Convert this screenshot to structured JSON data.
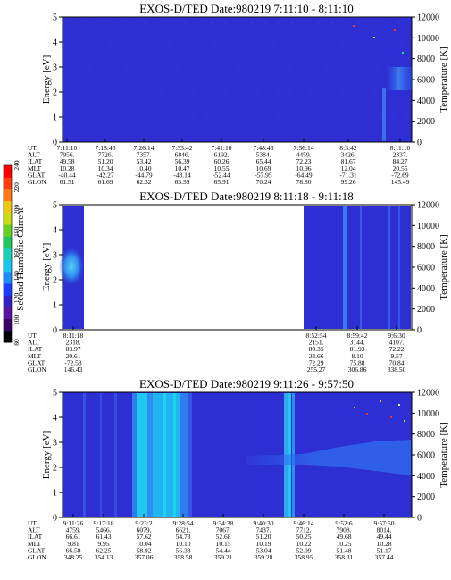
{
  "figure": {
    "colorbar": {
      "label": "Second Harmonic Current",
      "ticks": [
        "80",
        "100",
        "120",
        "140",
        "160",
        "180",
        "200",
        "220",
        "240"
      ],
      "colors": [
        "#000000",
        "#3d0066",
        "#5a14a0",
        "#3020c8",
        "#1e3cff",
        "#1e8cff",
        "#18c8f0",
        "#19d2b4",
        "#1ec85a",
        "#64d21e",
        "#c8dc14",
        "#f0c814",
        "#ff7814",
        "#ff3c0a",
        "#ff0000"
      ]
    },
    "y_axis_label": "Energy [eV]",
    "y_ticks": [
      "0",
      "1",
      "2",
      "3",
      "4",
      "5"
    ],
    "y2_axis_label": "Temperature [K]",
    "y2_ticks": [
      "0",
      "2000",
      "4000",
      "6000",
      "8000",
      "10000",
      "12000"
    ],
    "row_labels": [
      "UT",
      "ALT",
      "ILAT",
      "MLT",
      "GLAT",
      "GLON"
    ]
  },
  "panels": [
    {
      "title": "EXOS-D/TED   Date:980219  7:11:10 - 8:11:10",
      "columns": [
        [
          "7:11:10",
          "7956.",
          "49.58",
          "10.28",
          "-40.44",
          "61.51"
        ],
        [
          "7:18:46",
          "7726.",
          "51.20",
          "10.34",
          "-42.27",
          "61.69"
        ],
        [
          "7:26:14",
          "7357.",
          "53.42",
          "10.40",
          "-44.79",
          "62.32"
        ],
        [
          "7:33:42",
          "6846.",
          "56.39",
          "10.47",
          "-48.14",
          "63.59"
        ],
        [
          "7:41:10",
          "6192.",
          "60.26",
          "10.55",
          "-52.44",
          "65.91"
        ],
        [
          "7:48:46",
          "5384.",
          "65.44",
          "10.69",
          "-57.95",
          "70.24"
        ],
        [
          "7:56:14",
          "4459.",
          "72.23",
          "10.96",
          "-64.49",
          "78.80"
        ],
        [
          "8:3:42",
          "3426.",
          "81.67",
          "12.04",
          "-71.31",
          "99.26"
        ],
        [
          "8:11:10",
          "2337.",
          "84.27",
          "20.55",
          "-72.69",
          "145.49"
        ]
      ]
    },
    {
      "title": "EXOS-D/TED   Date:980219  8:11:18 - 9:11:18",
      "columns": [
        [
          "8:11:18",
          "2318.",
          "83.97",
          "20.61",
          "-72.58",
          "146.43"
        ],
        [
          "8:52:54",
          "2151.",
          "80.35",
          "23.66",
          "72.29",
          "255.27"
        ],
        [
          "8:59:42",
          "3144.",
          "81.93",
          "8.10",
          "75.88",
          "306.86"
        ],
        [
          "9:6:30",
          "4107.",
          "72.22",
          "9.57",
          "70.84",
          "338.50"
        ]
      ]
    },
    {
      "title": "EXOS-D/TED   Date:980219  9:11:26 - 9:57:50",
      "columns": [
        [
          "9:11:26",
          "4759.",
          "66.61",
          "9.81",
          "66.58",
          "348.25"
        ],
        [
          "9:17:18",
          "5466.",
          "61.43",
          "9.95",
          "62.25",
          "354.13"
        ],
        [
          "9:23:2",
          "6079.",
          "57.62",
          "10.04",
          "58.92",
          "357.06"
        ],
        [
          "9:28:54",
          "6621.",
          "54.73",
          "10.10",
          "56.33",
          "358.58"
        ],
        [
          "9:34:38",
          "7067.",
          "52.68",
          "10.15",
          "54.44",
          "359.21"
        ],
        [
          "9:40:30",
          "7437.",
          "51.20",
          "10.19",
          "53.04",
          "359.28"
        ],
        [
          "9:46:14",
          "7712.",
          "50.25",
          "10.22",
          "52.09",
          "358.95"
        ],
        [
          "9:52:6",
          "7908.",
          "49.68",
          "10.25",
          "51.48",
          "358.31"
        ],
        [
          "9:57:50",
          "8014.",
          "49.44",
          "10.28",
          "51.17",
          "357.44"
        ]
      ]
    }
  ],
  "chart_data": [
    {
      "type": "heatmap",
      "title": "EXOS-D/TED   Date:980219  7:11:10 - 8:11:10",
      "ylabel": "Energy [eV]",
      "ylim": [
        0,
        5
      ],
      "y2label": "Temperature [K]",
      "y2lim": [
        0,
        12000
      ],
      "x": [
        "7:11:10",
        "7:18:46",
        "7:26:14",
        "7:33:42",
        "7:41:10",
        "7:48:46",
        "7:56:14",
        "8:3:42",
        "8:11:10"
      ],
      "features": [
        {
          "t_from": "7:57:30",
          "t_to": "7:58:30",
          "e_from": 0.0,
          "e_to": 2.0,
          "level": "light-blue"
        },
        {
          "t_from": "8:6:00",
          "t_to": "8:11:10",
          "e_from": 2.3,
          "e_to": 3.0,
          "level": "light-blue"
        }
      ]
    },
    {
      "type": "heatmap",
      "title": "EXOS-D/TED   Date:980219  8:11:18 - 9:11:18",
      "ylabel": "Energy [eV]",
      "ylim": [
        0,
        5
      ],
      "y2label": "Temperature [K]",
      "y2lim": [
        0,
        12000
      ],
      "x": [
        "8:11:18",
        "8:52:54",
        "8:59:42",
        "9:6:30"
      ],
      "data_gap": [
        "8:13:30",
        "8:52:20"
      ],
      "features": [
        {
          "t_from": "8:11:18",
          "t_to": "8:13:30",
          "e_from": 1.8,
          "e_to": 3.0,
          "level": "cyan"
        },
        {
          "t_from": "9:0:00",
          "t_to": "9:2:00",
          "e_from": 0.0,
          "e_to": 5.0,
          "level": "light-blue"
        }
      ]
    },
    {
      "type": "heatmap",
      "title": "EXOS-D/TED   Date:980219  9:11:26 - 9:57:50",
      "ylabel": "Energy [eV]",
      "ylim": [
        0,
        5
      ],
      "y2label": "Temperature [K]",
      "y2lim": [
        0,
        12000
      ],
      "x": [
        "9:11:26",
        "9:17:18",
        "9:23:2",
        "9:28:54",
        "9:34:38",
        "9:40:30",
        "9:46:14",
        "9:52:6",
        "9:57:50"
      ],
      "features": [
        {
          "t_from": "9:22:00",
          "t_to": "9:28:00",
          "e_from": 0.0,
          "e_to": 5.0,
          "level": "cyan"
        },
        {
          "t_from": "9:39:30",
          "t_to": "9:41:30",
          "e_from": 0.0,
          "e_to": 5.0,
          "level": "cyan"
        },
        {
          "t_from": "9:36:00",
          "t_to": "9:57:50",
          "e_from": 1.7,
          "e_to": 2.3,
          "level": "light-blue"
        }
      ]
    }
  ]
}
